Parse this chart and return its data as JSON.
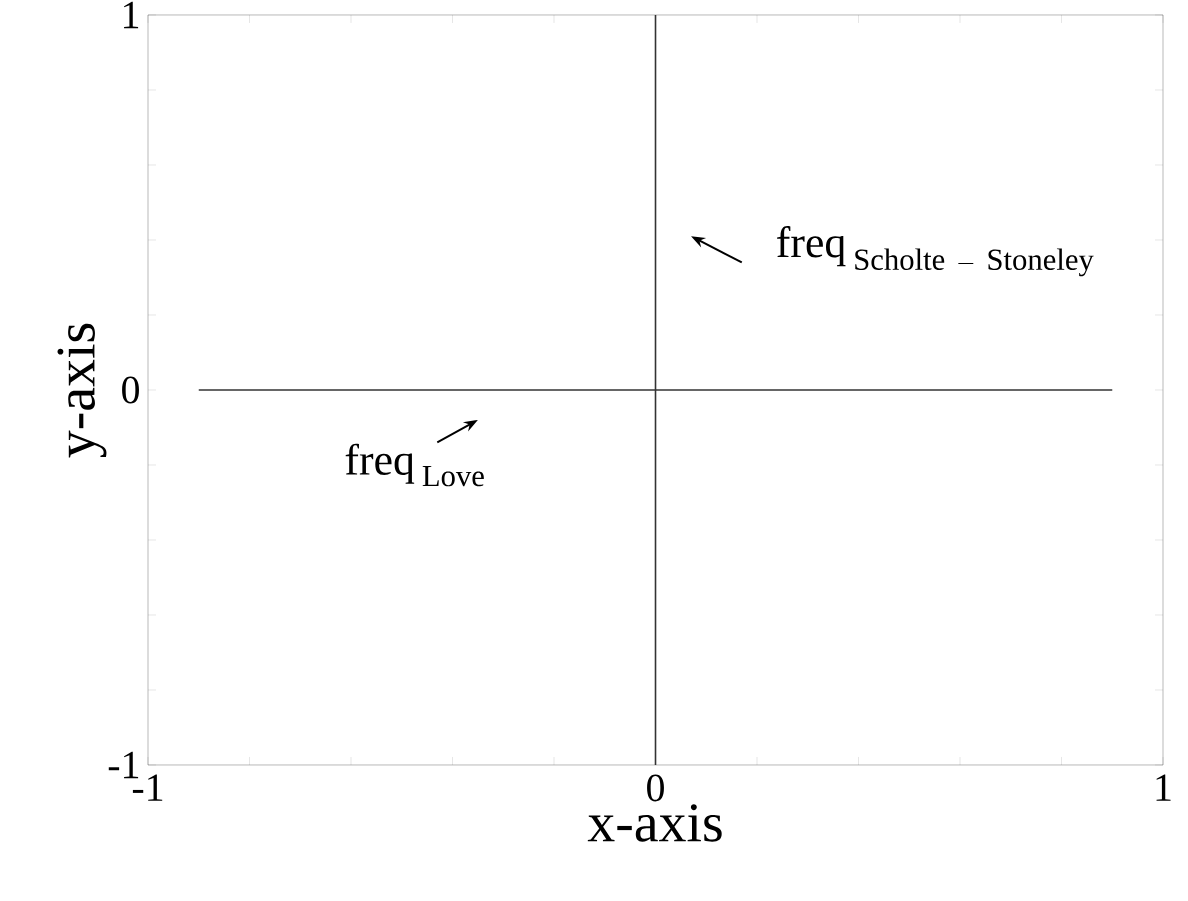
{
  "chart_data": {
    "type": "line",
    "xlabel": "x-axis",
    "ylabel": "y-axis",
    "xlim": [
      -1,
      1
    ],
    "ylim": [
      -1,
      1
    ],
    "xticks": [
      -1,
      {
        "value": -0.8,
        "label": null
      },
      {
        "value": -0.6,
        "label": null
      },
      {
        "value": -0.4,
        "label": null
      },
      {
        "value": -0.2,
        "label": null
      },
      0,
      {
        "value": 0.2,
        "label": null
      },
      {
        "value": 0.4,
        "label": null
      },
      {
        "value": 0.6,
        "label": null
      },
      {
        "value": 0.8,
        "label": null
      },
      1
    ],
    "yticks": [
      -1,
      {
        "value": -0.8,
        "label": null
      },
      {
        "value": -0.6,
        "label": null
      },
      {
        "value": -0.4,
        "label": null
      },
      {
        "value": -0.2,
        "label": null
      },
      0,
      {
        "value": 0.2,
        "label": null
      },
      {
        "value": 0.4,
        "label": null
      },
      {
        "value": 0.6,
        "label": null
      },
      {
        "value": 0.8,
        "label": null
      },
      1
    ],
    "series": [
      {
        "color": "#333333",
        "x": [
          -0.9,
          0.9
        ],
        "values": [
          0,
          0
        ]
      },
      {
        "color": "#333333",
        "x": [
          0,
          0
        ],
        "values": [
          -1,
          1
        ]
      }
    ],
    "annotations": [
      "\\mathrm{freq}_{\\;\\mathrm{Love}}",
      "\\mathrm{freq}_{\\;\\mathrm{Scholte\\ -\\ Stoneley}}"
    ]
  }
}
